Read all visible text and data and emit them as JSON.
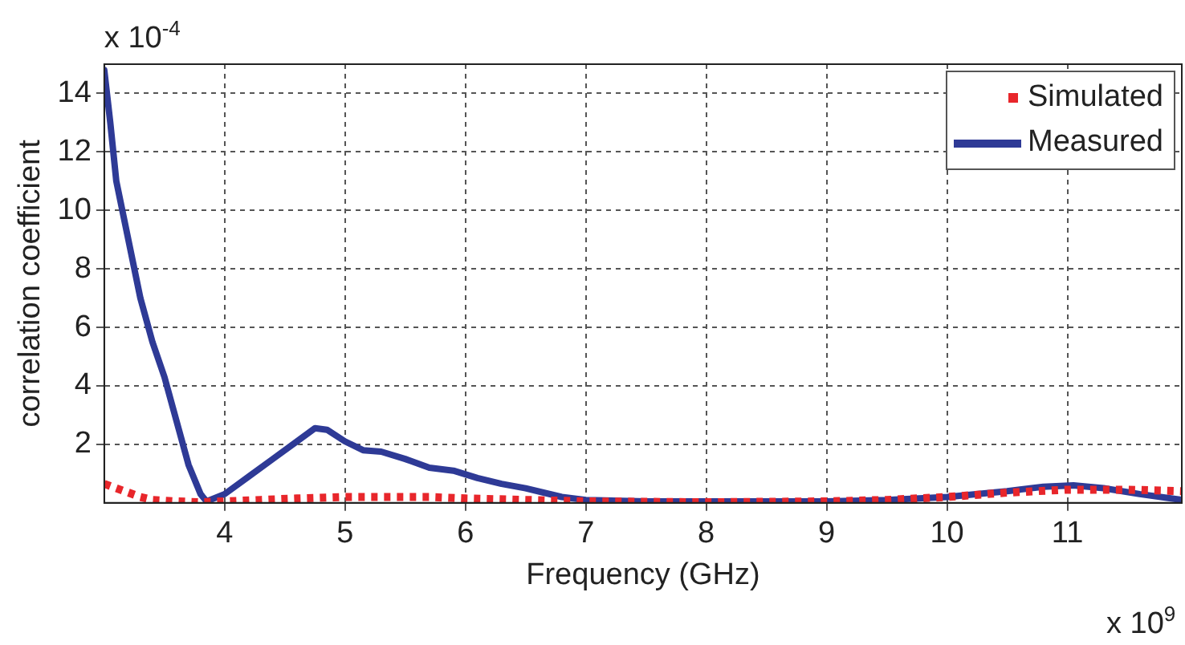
{
  "chart_data": {
    "type": "line",
    "xlabel": "Frequency (GHz)",
    "ylabel": "correlation coefficient",
    "annotations": [
      "x 10$^{-4}$",
      "x 10$^{9}$"
    ],
    "xlim": [
      3,
      11.95
    ],
    "ylim": [
      0,
      15
    ],
    "xticks": [
      4,
      5,
      6,
      7,
      8,
      9,
      10,
      11
    ],
    "yticks": [
      2,
      4,
      6,
      8,
      10,
      12,
      14
    ],
    "grid": true,
    "legend": "top right",
    "series": [
      {
        "name": "Simulated",
        "color": "#e8262b",
        "line_style": "dotted",
        "x": [
          3.0,
          3.1,
          3.2,
          3.3,
          3.4,
          3.6,
          3.8,
          4.0,
          4.3,
          4.6,
          5.0,
          5.3,
          5.7,
          6.0,
          6.5,
          7.0,
          8.0,
          9.0,
          9.5,
          10.0,
          10.5,
          11.0,
          11.5,
          11.95
        ],
        "values": [
          0.65,
          0.5,
          0.35,
          0.2,
          0.1,
          0.05,
          0.02,
          0.05,
          0.1,
          0.15,
          0.2,
          0.2,
          0.2,
          0.15,
          0.1,
          0.05,
          0.02,
          0.05,
          0.1,
          0.2,
          0.35,
          0.45,
          0.45,
          0.4
        ]
      },
      {
        "name": "Measured",
        "color": "#2e3a96",
        "line_style": "solid",
        "x": [
          3.0,
          3.05,
          3.1,
          3.2,
          3.3,
          3.4,
          3.5,
          3.6,
          3.7,
          3.8,
          3.85,
          4.0,
          4.2,
          4.4,
          4.6,
          4.75,
          4.85,
          5.0,
          5.15,
          5.3,
          5.5,
          5.7,
          5.9,
          6.1,
          6.3,
          6.5,
          6.8,
          7.0,
          7.5,
          8.0,
          9.0,
          9.5,
          10.0,
          10.5,
          10.8,
          11.05,
          11.3,
          11.6,
          11.95
        ],
        "values": [
          14.8,
          13,
          11,
          9,
          7,
          5.5,
          4.3,
          2.8,
          1.3,
          0.3,
          0.05,
          0.3,
          0.9,
          1.5,
          2.1,
          2.55,
          2.5,
          2.1,
          1.8,
          1.75,
          1.5,
          1.2,
          1.1,
          0.85,
          0.65,
          0.5,
          0.2,
          0.1,
          0.05,
          0.05,
          0.05,
          0.1,
          0.2,
          0.4,
          0.55,
          0.6,
          0.5,
          0.3,
          0.1
        ]
      }
    ]
  }
}
